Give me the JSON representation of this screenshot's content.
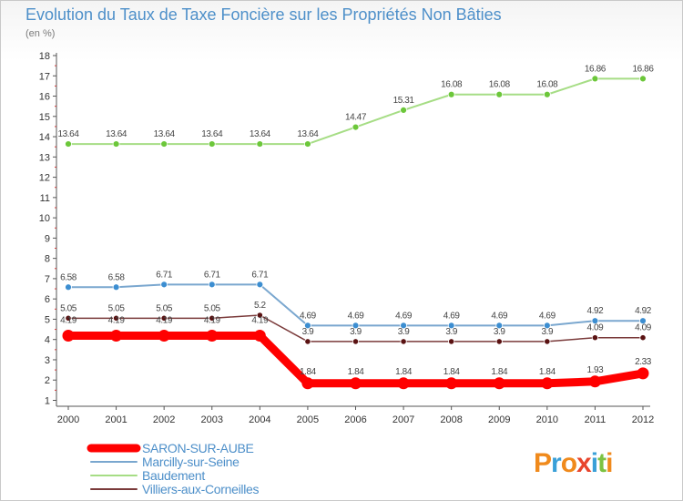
{
  "chart_data": {
    "type": "line",
    "title": "Evolution du Taux de Taxe Foncière sur les Propriétés Non Bâties",
    "ylabel": "(en %)",
    "xlabel": "",
    "ylim": [
      1,
      18
    ],
    "yticks": [
      1,
      2,
      3,
      4,
      5,
      6,
      7,
      8,
      9,
      10,
      11,
      12,
      13,
      14,
      15,
      16,
      17,
      18
    ],
    "categories": [
      "2000",
      "2001",
      "2002",
      "2003",
      "2004",
      "2005",
      "2006",
      "2007",
      "2008",
      "2009",
      "2010",
      "2011",
      "2012"
    ],
    "series": [
      {
        "name": "SARON-SUR-AUBE",
        "color": "#ff0000",
        "point_color": "#ff0000",
        "values": [
          4.19,
          4.19,
          4.19,
          4.19,
          4.19,
          1.84,
          1.84,
          1.84,
          1.84,
          1.84,
          1.84,
          1.93,
          2.33
        ],
        "labels": [
          "4.19",
          "4.19",
          "4.19",
          "4.19",
          "4.19",
          "1.84",
          "1.84",
          "1.84",
          "1.84",
          "1.84",
          "1.84",
          "1.93",
          "2.33"
        ]
      },
      {
        "name": "Marcilly-sur-Seine",
        "color": "#7aa7cf",
        "point_color": "#3c8ed1",
        "values": [
          6.58,
          6.58,
          6.71,
          6.71,
          6.71,
          4.69,
          4.69,
          4.69,
          4.69,
          4.69,
          4.69,
          4.92,
          4.92
        ],
        "labels": [
          "6.58",
          "6.58",
          "6.71",
          "6.71",
          "6.71",
          "4.69",
          "4.69",
          "4.69",
          "4.69",
          "4.69",
          "4.69",
          "4.92",
          "4.92"
        ]
      },
      {
        "name": "Baudement",
        "color": "#a6dd85",
        "point_color": "#6cc73a",
        "values": [
          13.64,
          13.64,
          13.64,
          13.64,
          13.64,
          13.64,
          14.47,
          15.31,
          16.08,
          16.08,
          16.08,
          16.86,
          16.86
        ],
        "labels": [
          "13.64",
          "13.64",
          "13.64",
          "13.64",
          "13.64",
          "13.64",
          "14.47",
          "15.31",
          "16.08",
          "16.08",
          "16.08",
          "16.86",
          "16.86"
        ]
      },
      {
        "name": "Villiers-aux-Corneilles",
        "color": "#7a3a3a",
        "point_color": "#5a1212",
        "values": [
          5.05,
          5.05,
          5.05,
          5.05,
          5.2,
          3.9,
          3.9,
          3.9,
          3.9,
          3.9,
          3.9,
          4.09,
          4.09
        ],
        "labels": [
          "5.05",
          "5.05",
          "5.05",
          "5.05",
          "5.2",
          "3.9",
          "3.9",
          "3.9",
          "3.9",
          "3.9",
          "3.9",
          "4.09",
          "4.09"
        ]
      }
    ],
    "grid": false,
    "legend_position": "bottom-left"
  },
  "logo": {
    "text": "Proxiti"
  }
}
